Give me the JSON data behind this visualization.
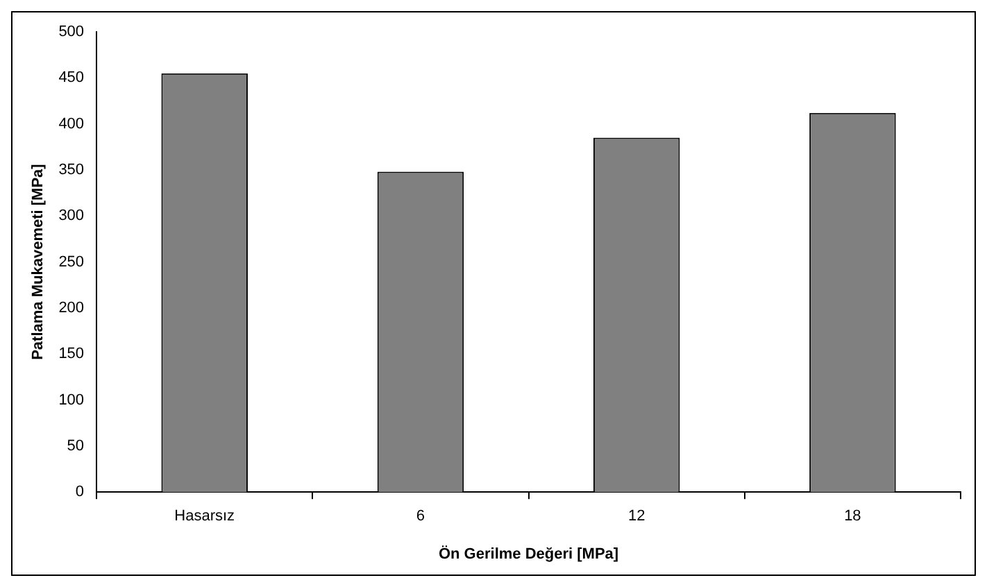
{
  "chart_data": {
    "type": "bar",
    "xlabel": "Ön Gerilme Değeri [MPa]",
    "ylabel": "Patlama Mukavemeti [MPa]",
    "categories": [
      "Hasarsız",
      "6",
      "12",
      "18"
    ],
    "values": [
      455,
      348,
      385,
      412
    ],
    "color": "#808080",
    "ylim": [
      0,
      500
    ],
    "yticks": [
      0,
      50,
      100,
      150,
      200,
      250,
      300,
      350,
      400,
      450,
      500
    ],
    "grid": false,
    "legend": false
  }
}
